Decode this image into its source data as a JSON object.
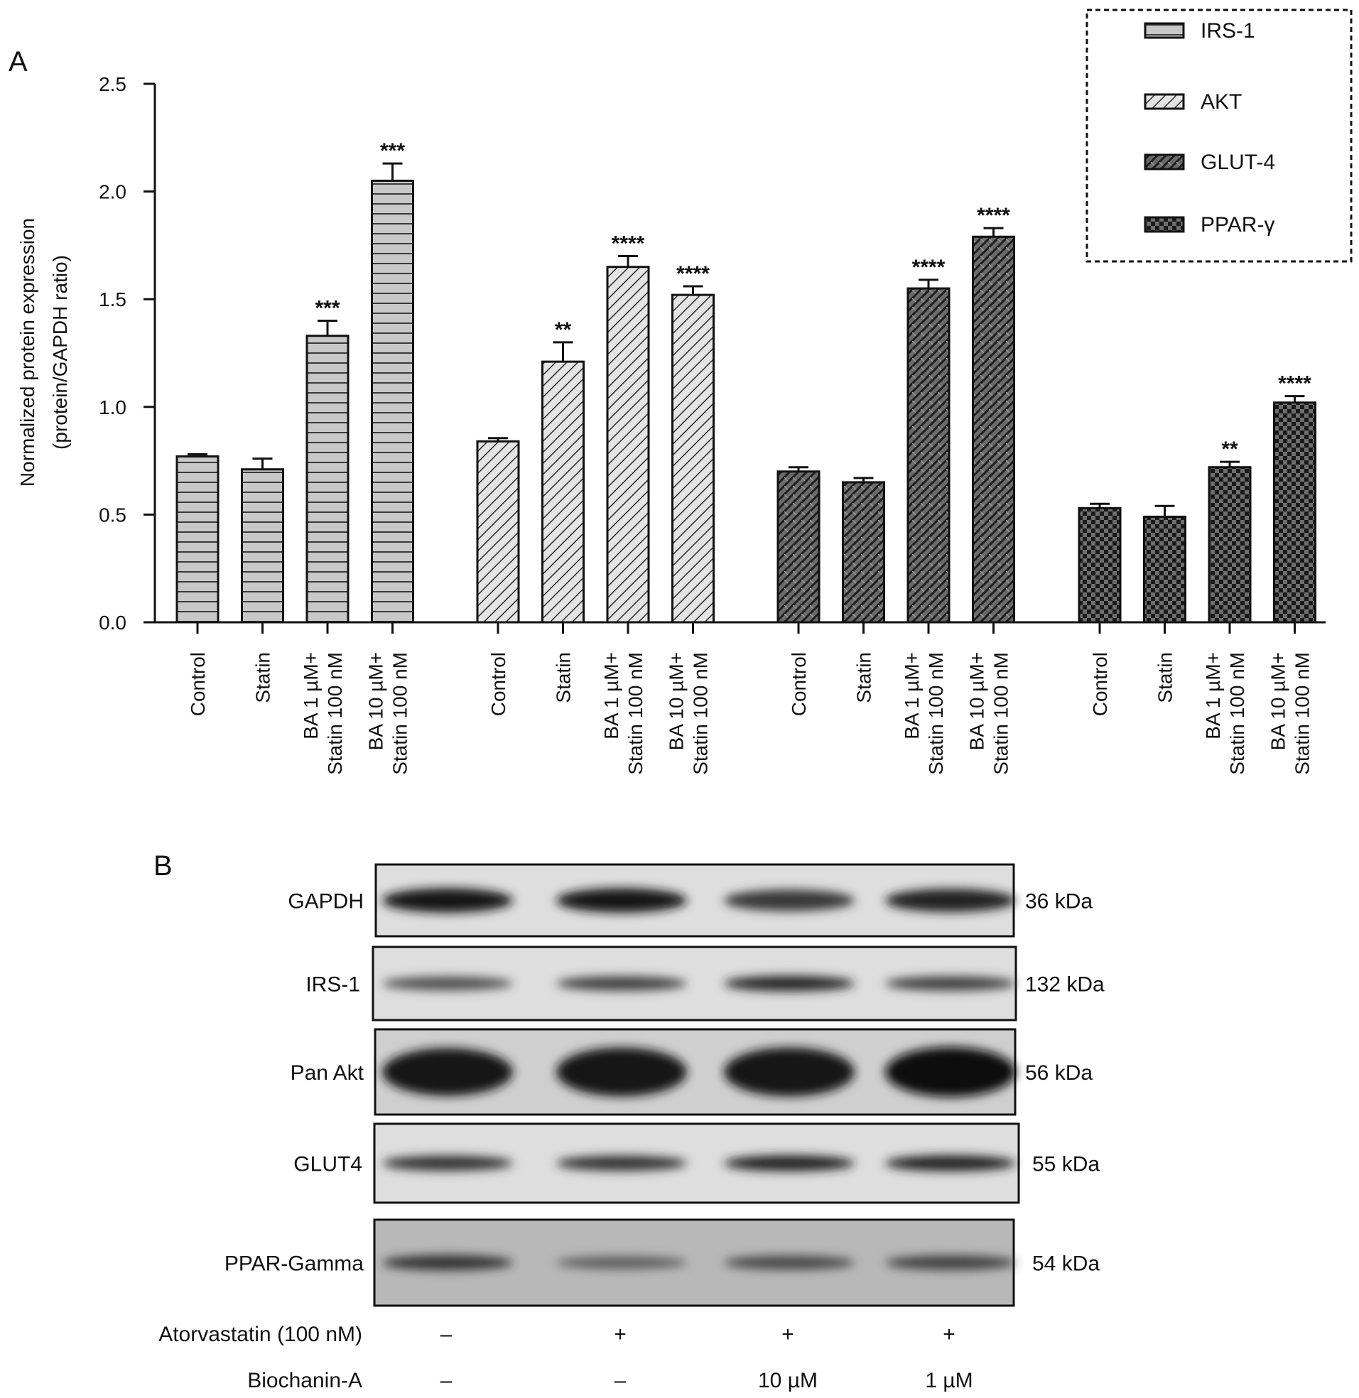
{
  "panels": {
    "a_label": "A",
    "b_label": "B"
  },
  "chart_data": {
    "type": "bar",
    "ylabel_line1": "Normalized protein expression",
    "ylabel_line2": "(protein/GAPDH ratio)",
    "ylim": [
      0,
      2.5
    ],
    "yticks": [
      "0.0",
      "0.5",
      "1.0",
      "1.5",
      "2.0",
      "2.5"
    ],
    "ytick_values": [
      0,
      0.5,
      1.0,
      1.5,
      2.0,
      2.5
    ],
    "legend_position": "top-right",
    "categories": [
      {
        "line1": "Control",
        "line2": ""
      },
      {
        "line1": "Statin",
        "line2": ""
      },
      {
        "line1": "BA 1 µM+",
        "line2": "Statin 100 nM"
      },
      {
        "line1": "BA 10 µM+",
        "line2": "Statin 100 nM"
      }
    ],
    "series": [
      {
        "name": "IRS-1",
        "pattern": "hlines",
        "values": [
          0.77,
          0.71,
          1.33,
          2.05
        ],
        "errors": [
          0.01,
          0.05,
          0.07,
          0.08
        ],
        "significance": [
          "",
          "",
          "***",
          "***"
        ]
      },
      {
        "name": "AKT",
        "pattern": "diag",
        "values": [
          0.84,
          1.21,
          1.65,
          1.52
        ],
        "errors": [
          0.015,
          0.09,
          0.05,
          0.04
        ],
        "significance": [
          "",
          "**",
          "****",
          "****"
        ]
      },
      {
        "name": "GLUT-4",
        "pattern": "weave",
        "values": [
          0.7,
          0.65,
          1.55,
          1.79
        ],
        "errors": [
          0.02,
          0.02,
          0.04,
          0.04
        ],
        "significance": [
          "",
          "",
          "****",
          "****"
        ]
      },
      {
        "name": "PPAR-γ",
        "pattern": "checker",
        "values": [
          0.53,
          0.49,
          0.72,
          1.02
        ],
        "errors": [
          0.02,
          0.05,
          0.025,
          0.03
        ],
        "significance": [
          "",
          "",
          "**",
          "****"
        ]
      }
    ],
    "colors": {
      "bar_fill": "#c8c8c8",
      "hatch": "#3a3a3a",
      "dark_fill": "#555555",
      "checker_dark": "#1a1a1a",
      "checker_light": "#6e6e6e"
    }
  },
  "blot": {
    "rows": [
      {
        "protein": "GAPDH",
        "size": "36 kDa",
        "intensities": [
          0.95,
          0.95,
          0.7,
          0.85
        ]
      },
      {
        "protein": "IRS-1",
        "size": "132 kDa",
        "intensities": [
          0.55,
          0.65,
          0.8,
          0.65
        ]
      },
      {
        "protein": "Pan Akt",
        "size": "56 kDa",
        "intensities": [
          0.9,
          0.95,
          0.95,
          1.0
        ]
      },
      {
        "protein": "GLUT4",
        "size": "55 kDa",
        "intensities": [
          0.75,
          0.75,
          0.85,
          0.85
        ]
      },
      {
        "protein": "PPAR-Gamma",
        "size": "54 kDa",
        "intensities": [
          0.75,
          0.45,
          0.6,
          0.65
        ]
      }
    ],
    "treatments": [
      {
        "label": "Atorvastatin (100 nM)",
        "values": [
          "–",
          "+",
          "+",
          "+"
        ]
      },
      {
        "label": "Biochanin-A",
        "values": [
          "–",
          "–",
          "10 µM",
          "1 µM"
        ]
      }
    ]
  }
}
